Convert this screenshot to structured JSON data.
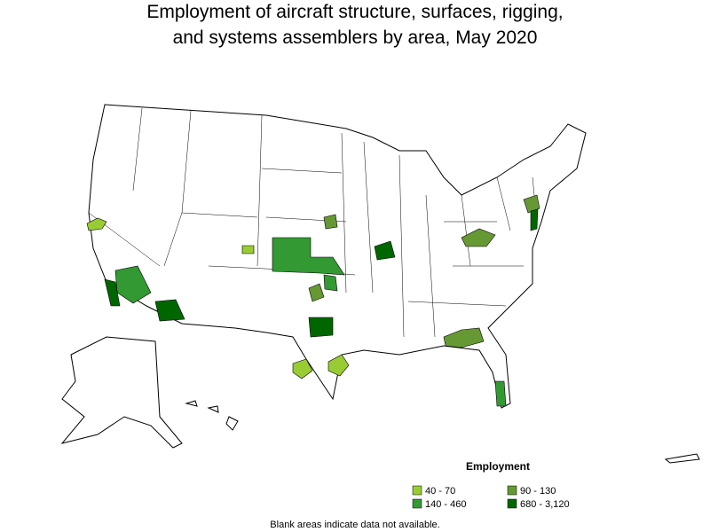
{
  "title": [
    "Employment of aircraft structure, surfaces, rigging,",
    "and systems assemblers by area, May 2020"
  ],
  "legend": {
    "title": "Employment",
    "items": [
      {
        "label": "40 - 70",
        "color": "#99cc33"
      },
      {
        "label": "90 - 130",
        "color": "#669933"
      },
      {
        "label": "140 - 460",
        "color": "#339933"
      },
      {
        "label": "680 - 3,120",
        "color": "#006600"
      }
    ]
  },
  "footnote": "Blank areas indicate data not available."
}
